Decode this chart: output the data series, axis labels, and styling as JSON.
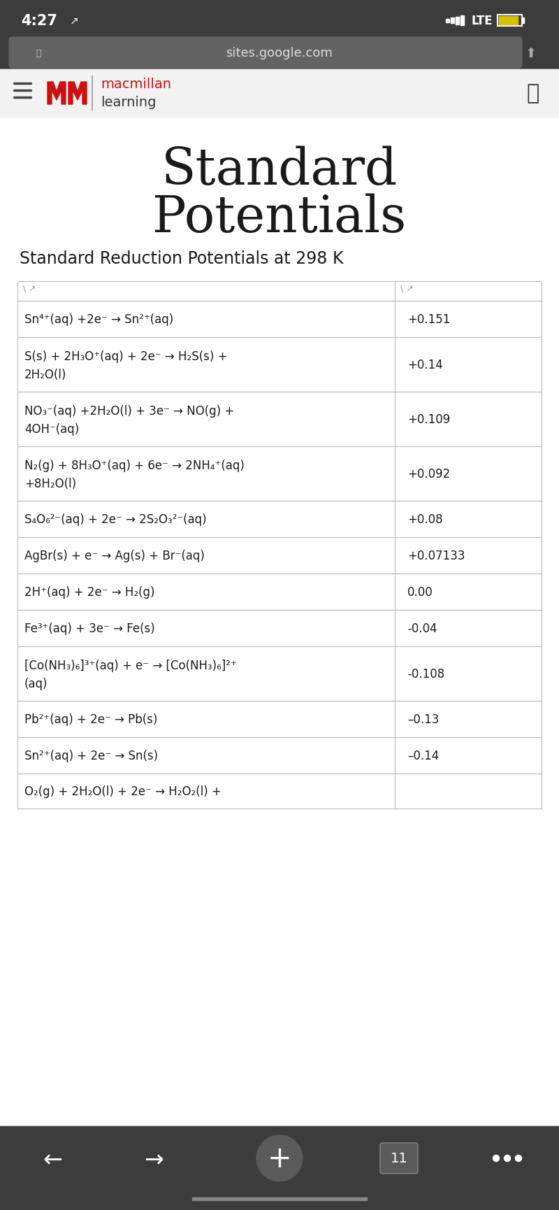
{
  "title_line1": "Standard",
  "title_line2": "Potentials",
  "subtitle": "Standard Reduction Potentials at 298 K",
  "rows": [
    {
      "reaction": "Sn⁴⁺(aq) +2e⁻ → Sn²⁺(aq)",
      "potential": "+0.151",
      "multiline": false
    },
    {
      "reaction": "S(s) + 2H₃O⁺(aq) + 2e⁻ → H₂S(s) +\n2H₂O(l)",
      "potential": "+0.14",
      "multiline": true
    },
    {
      "reaction": "NO₃⁻(aq) +2H₂O(l) + 3e⁻ → NO(g) +\n4OH⁻(aq)",
      "potential": "+0.109",
      "multiline": true
    },
    {
      "reaction": "N₂(g) + 8H₃O⁺(aq) + 6e⁻ → 2NH₄⁺(aq)\n+8H₂O(l)",
      "potential": "+0.092",
      "multiline": true
    },
    {
      "reaction": "S₄O₆²⁻(aq) + 2e⁻ → 2S₂O₃²⁻(aq)",
      "potential": "+0.08",
      "multiline": false
    },
    {
      "reaction": "AgBr(s) + e⁻ → Ag(s) + Br⁻(aq)",
      "potential": "+0.07133",
      "multiline": false
    },
    {
      "reaction": "2H⁺(aq) + 2e⁻ → H₂(g)",
      "potential": "0.00",
      "multiline": false
    },
    {
      "reaction": "Fe³⁺(aq) + 3e⁻ → Fe(s)",
      "potential": "-0.04",
      "multiline": false
    },
    {
      "reaction": "[Co(NH₃)₆]³⁺(aq) + e⁻ → [Co(NH₃)₆]²⁺\n(aq)",
      "potential": "-0.108",
      "multiline": true
    },
    {
      "reaction": "Pb²⁺(aq) + 2e⁻ → Pb(s)",
      "potential": "–0.13",
      "multiline": false
    },
    {
      "reaction": "Sn²⁺(aq) + 2e⁻ → Sn(s)",
      "potential": "–0.14",
      "multiline": false
    },
    {
      "reaction": "O₂(g) + 2H₂O(l) + 2e⁻ → H₂O₂(l) +",
      "potential": "",
      "multiline": false,
      "partial": true
    }
  ],
  "status_bar_time": "4:27",
  "status_bar_url": "sites.google.com",
  "logo_text1": "macmillan",
  "logo_text2": "learning",
  "status_bg": "#3c3c3c",
  "url_bar_bg": "#636363",
  "header_bg": "#f2f2f2",
  "table_border": "#bbbbbb",
  "bottom_nav_bg": "#3c3c3c"
}
